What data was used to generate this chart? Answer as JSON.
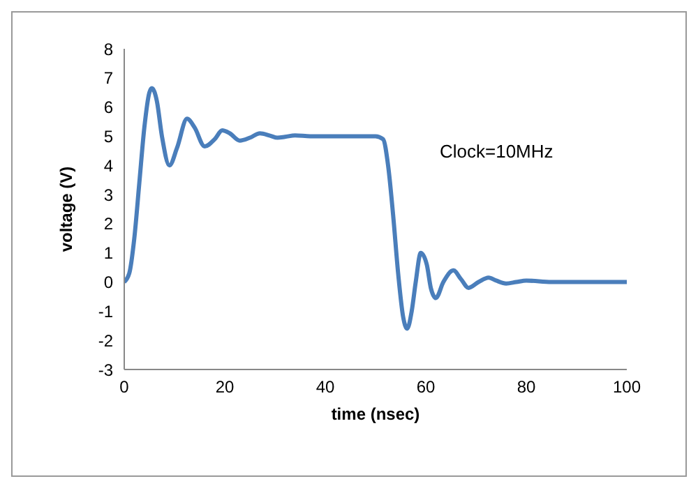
{
  "chart_data": {
    "type": "line",
    "xlabel": "time (nsec)",
    "ylabel": "voltage (V)",
    "annotations": [
      "Clock=10MHz"
    ],
    "xlim": [
      0,
      100
    ],
    "xticks": [
      0,
      20,
      40,
      60,
      80,
      100
    ],
    "ylim": [
      -3,
      8
    ],
    "yticks": [
      -3,
      -2,
      -1,
      0,
      1,
      2,
      3,
      4,
      5,
      6,
      7,
      8
    ],
    "grid": false,
    "legend": false,
    "marker": "none",
    "line_style": "solid",
    "series": [
      {
        "color": "#4a7ebb",
        "x": [
          0,
          1,
          2,
          3,
          4,
          5,
          5.5,
          6.5,
          7.5,
          9,
          10.5,
          12.5,
          14,
          16,
          18,
          19.5,
          21,
          23,
          25,
          27,
          29,
          30.5,
          32,
          34,
          37,
          40,
          45,
          50,
          51.5,
          52.5,
          53.5,
          54.5,
          55.5,
          56.3,
          57.2,
          58,
          59,
          60.2,
          61,
          62,
          63.5,
          65.5,
          67,
          68.5,
          70.5,
          72.5,
          74,
          76,
          78,
          80,
          85,
          90,
          95,
          100
        ],
        "values": [
          0,
          0.3,
          1.5,
          3.4,
          5.3,
          6.5,
          6.65,
          6.2,
          5.0,
          4.0,
          4.6,
          5.6,
          5.3,
          4.65,
          4.9,
          5.2,
          5.1,
          4.85,
          4.95,
          5.1,
          5.02,
          4.95,
          4.98,
          5.03,
          5.0,
          5.0,
          5.0,
          5.0,
          4.9,
          4.0,
          2.3,
          0.3,
          -1.2,
          -1.6,
          -1.0,
          0.0,
          1.0,
          0.6,
          -0.2,
          -0.55,
          0.0,
          0.4,
          0.1,
          -0.2,
          0.0,
          0.15,
          0.05,
          -0.05,
          0.0,
          0.05,
          0.0,
          0.0,
          0.0,
          0.0
        ]
      }
    ]
  }
}
